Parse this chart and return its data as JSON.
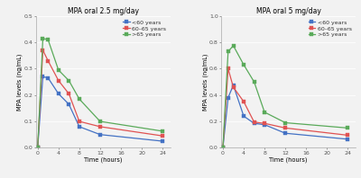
{
  "left": {
    "title": "MPA oral 2.5 mg/day",
    "ylabel": "MPA levels (ng/mL)",
    "xlabel": "Time (hours)",
    "ylim": [
      0,
      0.5
    ],
    "yticks": [
      0,
      0.1,
      0.2,
      0.3,
      0.4,
      0.5
    ],
    "xticks": [
      0,
      4,
      8,
      12,
      16,
      20,
      24
    ],
    "time": [
      0,
      1,
      2,
      4,
      6,
      8,
      12,
      24
    ],
    "blue": [
      0.0,
      0.27,
      0.265,
      0.205,
      0.165,
      0.08,
      0.05,
      0.025
    ],
    "red": [
      0.0,
      0.37,
      0.33,
      0.255,
      0.205,
      0.1,
      0.08,
      0.045
    ],
    "green": [
      0.0,
      0.415,
      0.41,
      0.295,
      0.255,
      0.185,
      0.1,
      0.063
    ]
  },
  "right": {
    "title": "MPA oral 5 mg/day",
    "ylabel": "MPA levels (ng/mL)",
    "xlabel": "Time (hours)",
    "ylim": [
      0,
      1.0
    ],
    "yticks": [
      0,
      0.2,
      0.4,
      0.6,
      0.8,
      1.0
    ],
    "xticks": [
      0,
      4,
      8,
      12,
      16,
      20,
      24
    ],
    "time": [
      0,
      1,
      2,
      4,
      6,
      8,
      12,
      24
    ],
    "blue": [
      0.0,
      0.38,
      0.475,
      0.24,
      0.185,
      0.175,
      0.11,
      0.065
    ],
    "red": [
      0.0,
      0.6,
      0.46,
      0.35,
      0.195,
      0.185,
      0.15,
      0.095
    ],
    "green": [
      0.0,
      0.73,
      0.775,
      0.63,
      0.5,
      0.27,
      0.19,
      0.15
    ]
  },
  "legend_labels": [
    "<60 years",
    "60–65 years",
    ">65 years"
  ],
  "colors": [
    "#4472c4",
    "#e05252",
    "#5aaa5a"
  ],
  "bg_color": "#f2f2f2",
  "marker": "s",
  "markersize": 2.2,
  "linewidth": 0.9,
  "title_fontsize": 5.5,
  "label_fontsize": 4.8,
  "tick_fontsize": 4.5,
  "legend_fontsize": 4.5
}
